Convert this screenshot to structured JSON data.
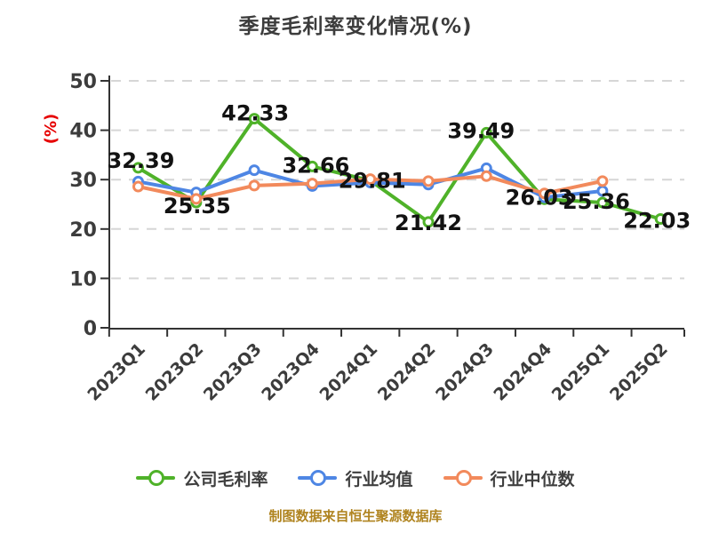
{
  "footer": "制图数据来自恒生聚源数据库",
  "chart_data": {
    "type": "line",
    "title": "季度毛利率变化情况(%)",
    "ylabel": "(%)",
    "ylim": [
      0,
      50
    ],
    "ytick_step": 10,
    "grid": "horizontal-dashed",
    "legend_position": "bottom",
    "axis_color": "#333333",
    "gridline_color": "#d6d6d6",
    "tick_label_color": "#3c3c3c",
    "ylabel_color": "#e60000",
    "data_label_color": "#121212",
    "categories": [
      "2023Q1",
      "2023Q2",
      "2023Q3",
      "2023Q4",
      "2024Q1",
      "2024Q2",
      "2024Q3",
      "2024Q4",
      "2025Q1",
      "2025Q2"
    ],
    "series": [
      {
        "name": "公司毛利率",
        "color": "#4fb229",
        "labeled": true,
        "values": [
          32.39,
          25.35,
          42.33,
          32.66,
          29.81,
          21.42,
          39.49,
          26.03,
          25.36,
          22.03
        ]
      },
      {
        "name": "行业均值",
        "color": "#4e86e4",
        "labeled": false,
        "values": [
          29.6,
          27.4,
          31.9,
          28.7,
          29.4,
          29.0,
          32.3,
          26.4,
          27.7,
          null
        ]
      },
      {
        "name": "行业中位数",
        "color": "#f28a5c",
        "labeled": false,
        "values": [
          28.6,
          26.1,
          28.8,
          29.2,
          30.1,
          29.7,
          30.7,
          27.2,
          29.7,
          null
        ]
      }
    ]
  }
}
